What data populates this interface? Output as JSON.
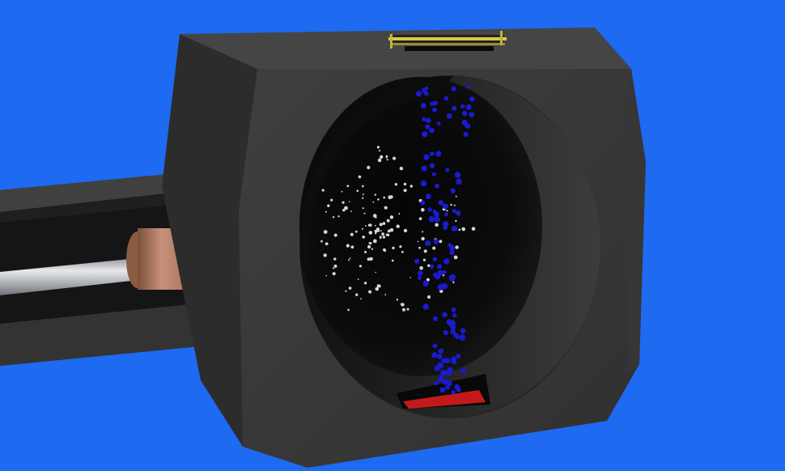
{
  "scene": {
    "background": "#1e6af0",
    "subject": "ionization-chamber-render",
    "colors": {
      "housing": "#3a3a3a",
      "housing_side": "#2b2b2b",
      "housing_top": "#464646",
      "interior": "#121212",
      "rail": "#2d2d2d",
      "rod": "#b9bcc2",
      "collar": "#b07a5c",
      "neutral_particle": "#d6d6d6",
      "ion_particle": "#1a1ad0",
      "collector_plate": "#c21a1a",
      "top_slot_rail": "#d8c84a"
    }
  }
}
